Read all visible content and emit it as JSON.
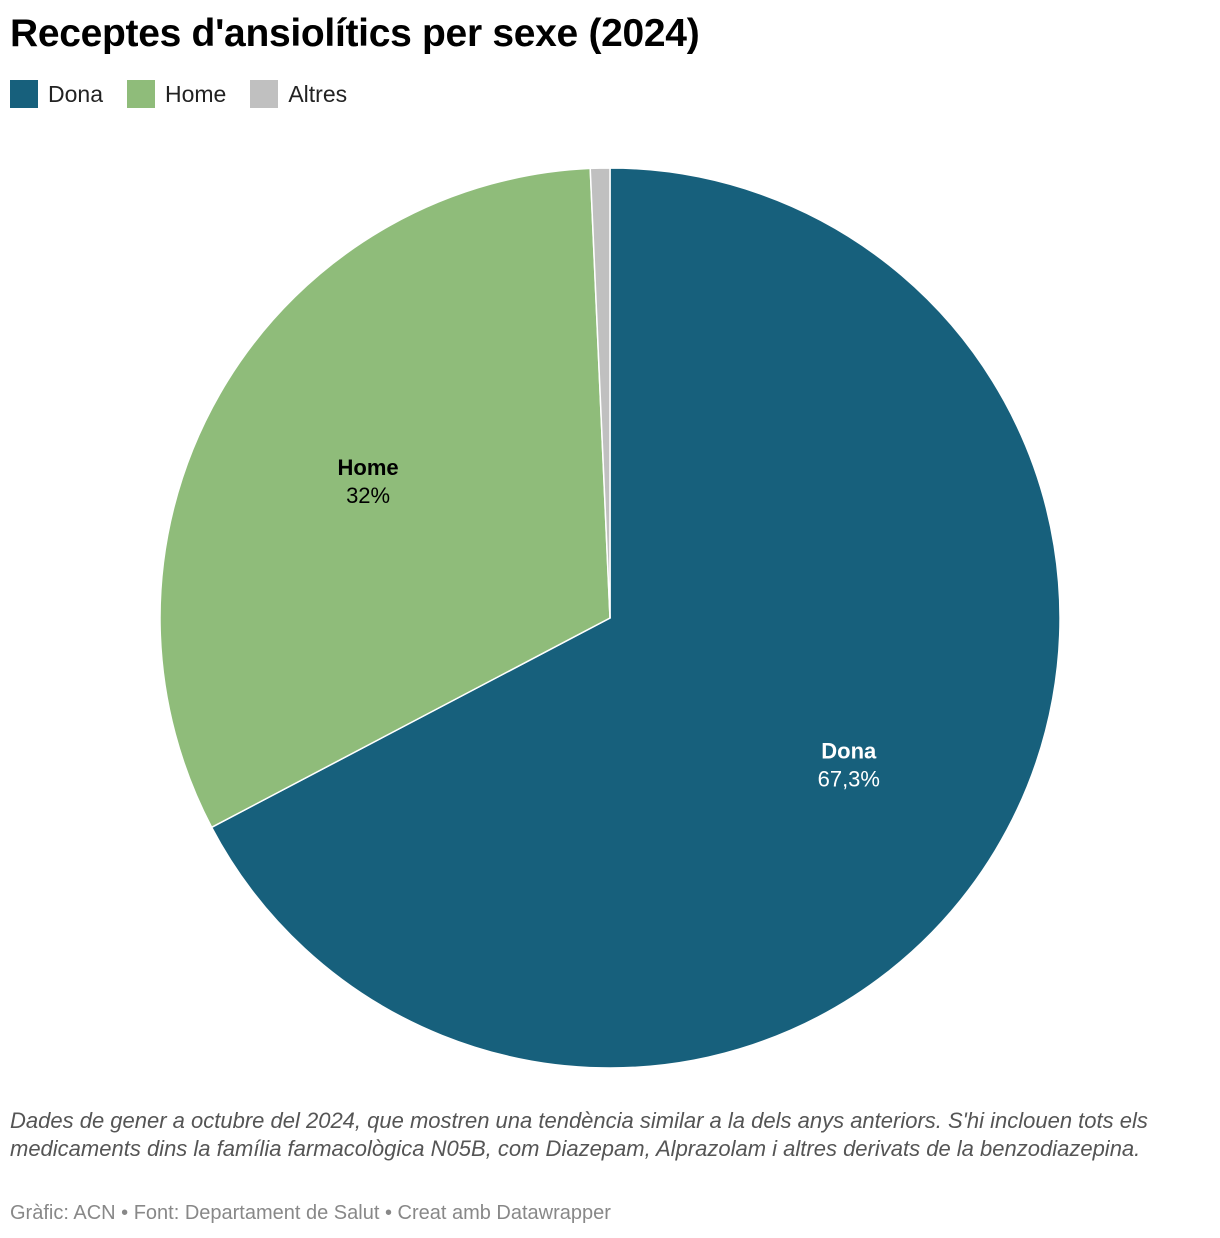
{
  "chart_data": {
    "type": "pie",
    "title": "Receptes d'ansiolítics per sexe (2024)",
    "slices": [
      {
        "name": "Dona",
        "value": 67.3,
        "label": "67,3%",
        "color": "#17607c",
        "label_color": "#ffffff"
      },
      {
        "name": "Home",
        "value": 32,
        "label": "32%",
        "color": "#8fbc7a",
        "label_color": "#000000"
      },
      {
        "name": "Altres",
        "value": 0.7,
        "label": "",
        "color": "#c0c0c0",
        "label_color": "#000000"
      }
    ],
    "legend": {
      "placement": "top-left",
      "items": [
        "Dona",
        "Home",
        "Altres"
      ]
    }
  },
  "notes": "Dades de gener a octubre del 2024, que mostren una tendència similar a la dels anys anteriors. S'hi inclouen tots els medicaments dins la família farmacològica N05B, com Diazepam, Alprazolam i altres derivats de la benzodiazepina.",
  "footer": "Gràfic: ACN • Font: Departament de Salut • Creat amb Datawrapper"
}
